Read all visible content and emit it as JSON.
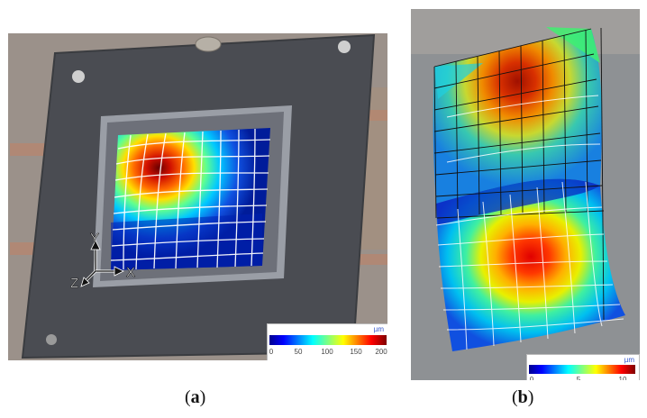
{
  "panel_a": {
    "caption_letter": "a",
    "axes": {
      "y": "Y",
      "x": "X",
      "z": "Z"
    },
    "colorbar": {
      "unit": "µm",
      "ticks": [
        "0",
        "50",
        "100",
        "150",
        "200"
      ]
    }
  },
  "panel_b": {
    "caption_letter": "b",
    "colorbar": {
      "unit": "µm",
      "ticks": [
        "0",
        "5",
        "10"
      ]
    }
  },
  "colors": {
    "jet_low": "#00008f",
    "jet_mid": "#00ff80",
    "jet_high": "#800000"
  }
}
